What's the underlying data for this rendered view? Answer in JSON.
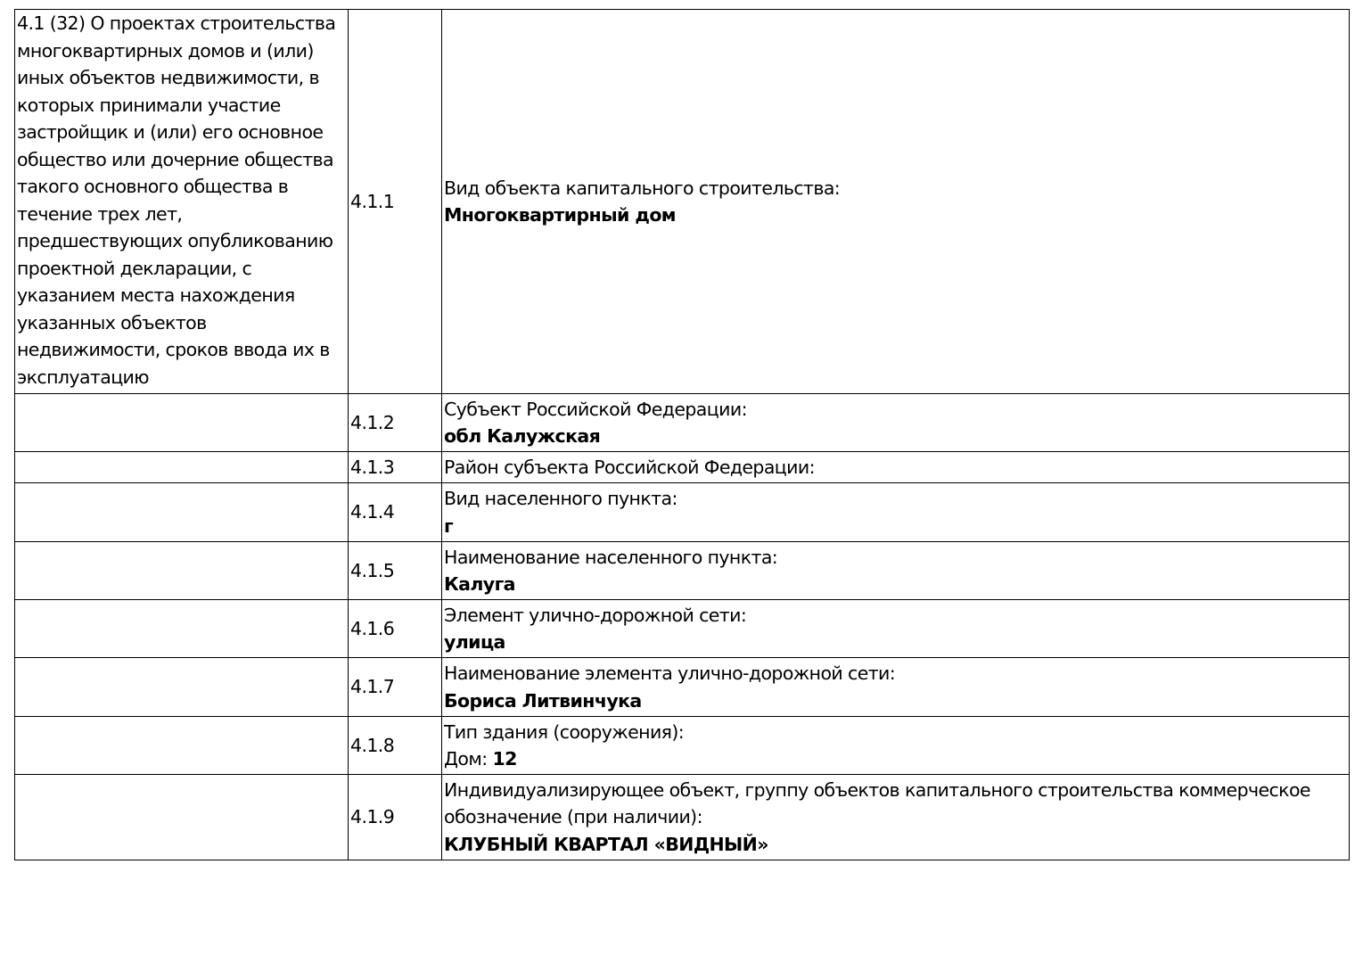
{
  "section_title": "4.1 (32) О проектах строительства многоквартирных домов и (или) иных объектов недвижимости, в которых принимали участие застройщик и (или) его основное общество или дочерние общества такого основного общества в течение трех лет, предшествующих опубликованию проектной декларации, с указанием места нахождения указанных объектов недвижимости, сроков ввода их в эксплуатацию",
  "rows": [
    {
      "num": "4.1.1",
      "label": "Вид объекта капитального строительства:",
      "value_prefix": "",
      "value": "Многоквартирный дом"
    },
    {
      "num": "4.1.2",
      "label": "Субъект Российской Федерации:",
      "value_prefix": "",
      "value": "обл Калужская"
    },
    {
      "num": "4.1.3",
      "label": "Район субъекта Российской Федерации:",
      "value_prefix": "",
      "value": ""
    },
    {
      "num": "4.1.4",
      "label": "Вид населенного пункта:",
      "value_prefix": "",
      "value": "г"
    },
    {
      "num": "4.1.5",
      "label": "Наименование населенного пункта:",
      "value_prefix": "",
      "value": "Калуга"
    },
    {
      "num": "4.1.6",
      "label": "Элемент улично-дорожной сети:",
      "value_prefix": "",
      "value": "улица"
    },
    {
      "num": "4.1.7",
      "label": "Наименование элемента улично-дорожной сети:",
      "value_prefix": "",
      "value": "Бориса Литвинчука"
    },
    {
      "num": "4.1.8",
      "label": "Тип здания (сооружения):",
      "value_prefix": "Дом: ",
      "value": "12"
    },
    {
      "num": "4.1.9",
      "label": "Индивидуализирующее объект, группу объектов капитального строительства коммерческое обозначение (при наличии):",
      "value_prefix": "",
      "value": "КЛУБНЫЙ КВАРТАЛ «ВИДНЫЙ»"
    }
  ]
}
